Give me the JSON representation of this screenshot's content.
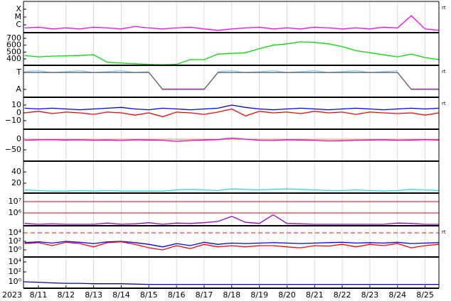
{
  "chart_data": [
    {
      "type": "line",
      "yscale": "log",
      "flag": "rt",
      "xlim": [
        10.46,
        25.5
      ],
      "ylim": [
        1e-07,
        0.001
      ],
      "yticks": [
        {
          "value": 0.0001,
          "label": "X"
        },
        {
          "value": 1e-05,
          "label": "M"
        },
        {
          "value": 1e-06,
          "label": "C"
        }
      ],
      "x": [
        10.5,
        11,
        11.5,
        12,
        12.5,
        13,
        13.5,
        14,
        14.5,
        15,
        15.5,
        16,
        16.5,
        17,
        17.5,
        18,
        18.5,
        19,
        19.5,
        20,
        20.5,
        21,
        21.5,
        22,
        22.5,
        23,
        23.5,
        24,
        24.5,
        25,
        25.5
      ],
      "series": [
        {
          "color": "#ff00ff",
          "values": [
            4e-07,
            5e-07,
            3e-07,
            4e-07,
            3e-07,
            5e-07,
            4e-07,
            3e-07,
            6e-07,
            4e-07,
            3e-07,
            4e-07,
            5e-07,
            3e-07,
            2e-07,
            3e-07,
            4e-07,
            5e-07,
            3e-07,
            4e-07,
            3e-07,
            5e-07,
            4e-07,
            3e-07,
            4e-07,
            3e-07,
            5e-07,
            4e-07,
            1.5e-05,
            3e-07,
            2e-07
          ]
        }
      ]
    },
    {
      "type": "line",
      "xlim": [
        10.46,
        25.5
      ],
      "ylim": [
        307,
        783
      ],
      "yticks": [
        400,
        500,
        600,
        700
      ],
      "x": [
        10.5,
        11,
        11.5,
        12,
        12.5,
        13,
        13.5,
        14,
        14.5,
        15,
        15.5,
        16,
        16.5,
        17,
        17.5,
        18,
        18.5,
        19,
        19.5,
        20,
        20.5,
        21,
        21.5,
        22,
        22.5,
        23,
        23.5,
        24,
        24.5,
        25,
        25.5
      ],
      "series": [
        {
          "color": "#00e000",
          "values": [
            450,
            430,
            440,
            445,
            450,
            460,
            350,
            340,
            330,
            320,
            315,
            320,
            390,
            390,
            470,
            480,
            490,
            550,
            600,
            620,
            650,
            640,
            620,
            580,
            520,
            490,
            460,
            430,
            470,
            420,
            390
          ]
        }
      ]
    },
    {
      "type": "line",
      "flag": "rt",
      "xlim": [
        10.46,
        25.5
      ],
      "ylim": [
        -0.46,
        1.42
      ],
      "yticks": [
        {
          "value": 1,
          "label": "T"
        },
        {
          "value": 0,
          "label": "A"
        }
      ],
      "x": [
        10.5,
        11,
        11.5,
        12,
        12.5,
        13,
        13.5,
        14,
        14.5,
        15,
        15.5,
        16,
        16.5,
        17,
        17.5,
        18,
        18.5,
        19,
        19.5,
        20,
        20.5,
        21,
        21.5,
        22,
        22.5,
        23,
        23.5,
        24,
        24.5,
        25,
        25.5
      ],
      "series": [
        {
          "color": "#88ccff",
          "values": [
            1.05,
            1.1,
            1,
            1.05,
            1.1,
            1,
            1.05,
            1.1,
            1,
            1.05,
            null,
            null,
            null,
            null,
            1.05,
            1.1,
            1,
            1.05,
            1.1,
            1,
            1.05,
            1.1,
            1,
            1.05,
            1.1,
            1,
            1.05,
            1.1,
            null,
            null,
            null
          ]
        },
        {
          "color": "#ff99ff",
          "values": [
            null,
            null,
            null,
            null,
            null,
            null,
            null,
            null,
            null,
            null,
            0.05,
            0.05,
            0.05,
            0.05,
            null,
            null,
            null,
            null,
            null,
            null,
            null,
            null,
            null,
            null,
            null,
            null,
            null,
            null,
            0.05,
            0.05,
            0.05
          ]
        },
        {
          "color": "#555555",
          "values": [
            1,
            1,
            1,
            1,
            1,
            1,
            1,
            1,
            1,
            1,
            0,
            0,
            0,
            0,
            1,
            1,
            1,
            1,
            1,
            1,
            1,
            1,
            1,
            1,
            1,
            1,
            1,
            1,
            0,
            0,
            0
          ]
        }
      ]
    },
    {
      "type": "line",
      "flag": "rt",
      "xlim": [
        10.46,
        25.5
      ],
      "ylim": [
        -21,
        20
      ],
      "yticks": [
        10,
        0,
        {
          "value": -10,
          "label": "−10"
        }
      ],
      "x": [
        10.5,
        11,
        11.5,
        12,
        12.5,
        13,
        13.5,
        14,
        14.5,
        15,
        15.5,
        16,
        16.5,
        17,
        17.5,
        18,
        18.5,
        19,
        19.5,
        20,
        20.5,
        21,
        21.5,
        22,
        22.5,
        23,
        23.5,
        24,
        24.5,
        25,
        25.5
      ],
      "series": [
        {
          "color": "#0000ff",
          "values": [
            6,
            5,
            6,
            5,
            4,
            5,
            6,
            7,
            5,
            4,
            6,
            5,
            4,
            5,
            6,
            10,
            7,
            5,
            4,
            5,
            6,
            5,
            4,
            5,
            6,
            5,
            4,
            5,
            6,
            5,
            6
          ]
        },
        {
          "color": "#ff0000",
          "values": [
            0,
            2,
            -1,
            1,
            0,
            -2,
            1,
            0,
            -3,
            0,
            -5,
            1,
            0,
            -2,
            1,
            5,
            -4,
            2,
            0,
            1,
            -1,
            2,
            0,
            1,
            -2,
            1,
            0,
            -1,
            0,
            -3,
            0
          ]
        }
      ]
    },
    {
      "type": "line",
      "xlim": [
        10.46,
        25.5
      ],
      "ylim": [
        -103,
        47
      ],
      "reference_lines": [
        0
      ],
      "reference_color": "#ff8040",
      "yticks": [
        0,
        {
          "value": -50,
          "label": "−50"
        }
      ],
      "x": [
        10.5,
        11,
        11.5,
        12,
        12.5,
        13,
        13.5,
        14,
        14.5,
        15,
        15.5,
        16,
        16.5,
        17,
        17.5,
        18,
        18.5,
        19,
        19.5,
        20,
        20.5,
        21,
        21.5,
        22,
        22.5,
        23,
        23.5,
        24,
        24.5,
        25,
        25.5
      ],
      "series": [
        {
          "color": "#dd00dd",
          "values": [
            -5,
            -3,
            -2,
            -4,
            -3,
            -5,
            -4,
            -6,
            -3,
            -4,
            -5,
            -10,
            -6,
            -4,
            -2,
            5,
            0,
            -5,
            -6,
            -3,
            -4,
            -5,
            -8,
            -7,
            -5,
            -4,
            -3,
            -5,
            -4,
            -2,
            -4
          ]
        }
      ]
    },
    {
      "type": "line",
      "xlim": [
        10.46,
        25.5
      ],
      "ylim": [
        2.5,
        59
      ],
      "yticks": [
        40,
        20
      ],
      "x": [
        10.5,
        11,
        11.5,
        12,
        12.5,
        13,
        13.5,
        14,
        14.5,
        15,
        15.5,
        16,
        16.5,
        17,
        17.5,
        18,
        18.5,
        19,
        19.5,
        20,
        20.5,
        21,
        21.5,
        22,
        22.5,
        23,
        23.5,
        24,
        24.5,
        25,
        25.5
      ],
      "series": [
        {
          "color": "#22dddd",
          "values": [
            8,
            7,
            6,
            6,
            7,
            6,
            7,
            6,
            6,
            6,
            6,
            8,
            9,
            8,
            7,
            10,
            9,
            8,
            9,
            10,
            9,
            8,
            7,
            7,
            8,
            7,
            6,
            7,
            9,
            8,
            7
          ]
        }
      ]
    },
    {
      "type": "line",
      "yscale": "log",
      "xlim": [
        10.46,
        25.5
      ],
      "ylim": [
        75000,
        56000000
      ],
      "reference_lines": [
        10000000,
        1000000
      ],
      "reference_color": "#dd0000",
      "yticks": [
        {
          "value": 10000000,
          "label": "10⁷"
        },
        {
          "value": 1000000,
          "label": "10⁶"
        }
      ],
      "x": [
        10.5,
        11,
        11.5,
        12,
        12.5,
        13,
        13.5,
        14,
        14.5,
        15,
        15.5,
        16,
        16.5,
        17,
        17.5,
        18,
        18.5,
        19,
        19.5,
        20,
        20.5,
        21,
        21.5,
        22,
        22.5,
        23,
        23.5,
        24,
        24.5,
        25,
        25.5
      ],
      "series": [
        {
          "color": "#9900cc",
          "values": [
            120000,
            100000,
            110000,
            100000,
            100000,
            100000,
            130000,
            100000,
            110000,
            140000,
            100000,
            130000,
            120000,
            140000,
            180000,
            500000,
            150000,
            120000,
            700000,
            120000,
            110000,
            100000,
            100000,
            100000,
            100000,
            100000,
            100000,
            130000,
            120000,
            100000,
            100000
          ]
        }
      ]
    },
    {
      "type": "line",
      "yscale": "log",
      "flag": "rt",
      "xlim": [
        10.46,
        25.5
      ],
      "ylim": [
        0.0214,
        468000
      ],
      "reference_lines": [
        10000
      ],
      "reference_color": "#ff0000",
      "yticks": [
        {
          "value": 10000,
          "label": "10⁴"
        },
        {
          "value": 100,
          "label": "10²"
        },
        {
          "value": 1,
          "label": "10⁰"
        }
      ],
      "x": [
        10.5,
        11,
        11.5,
        12,
        12.5,
        13,
        13.5,
        14,
        14.5,
        15,
        15.5,
        16,
        16.5,
        17,
        17.5,
        18,
        18.5,
        19,
        19.5,
        20,
        20.5,
        21,
        21.5,
        22,
        22.5,
        23,
        23.5,
        24,
        24.5,
        25,
        25.5
      ],
      "series": [
        {
          "color": "#0000ff",
          "values": [
            50,
            80,
            40,
            100,
            60,
            30,
            80,
            100,
            50,
            20,
            5,
            30,
            10,
            60,
            20,
            40,
            30,
            40,
            50,
            40,
            30,
            40,
            50,
            60,
            40,
            50,
            40,
            60,
            30,
            40,
            50
          ]
        },
        {
          "color": "#ff0000",
          "values": [
            30,
            50,
            10,
            60,
            30,
            5,
            50,
            80,
            20,
            3,
            1,
            10,
            2,
            20,
            5,
            10,
            5,
            10,
            10,
            5,
            3,
            10,
            8,
            20,
            5,
            20,
            10,
            30,
            3,
            10,
            20
          ]
        }
      ]
    },
    {
      "type": "line",
      "yscale": "log",
      "xlim": [
        10.46,
        25.5
      ],
      "ylim": [
        0.051,
        100000
      ],
      "yticks": [
        {
          "value": 10000,
          "label": "10⁴"
        },
        {
          "value": 100,
          "label": "10²"
        },
        {
          "value": 1,
          "label": "10⁰"
        }
      ],
      "year": "2023",
      "xticks": [
        {
          "value": 11,
          "label": "8/11"
        },
        {
          "value": 12,
          "label": "8/12"
        },
        {
          "value": 13,
          "label": "8/13"
        },
        {
          "value": 14,
          "label": "8/14"
        },
        {
          "value": 15,
          "label": "8/15"
        },
        {
          "value": 16,
          "label": "8/16"
        },
        {
          "value": 17,
          "label": "8/17"
        },
        {
          "value": 18,
          "label": "8/18"
        },
        {
          "value": 19,
          "label": "8/19"
        },
        {
          "value": 20,
          "label": "8/20"
        },
        {
          "value": 21,
          "label": "8/21"
        },
        {
          "value": 22,
          "label": "8/22"
        },
        {
          "value": 23,
          "label": "8/23"
        },
        {
          "value": 24,
          "label": "8/24"
        },
        {
          "value": 25,
          "label": "8/25"
        }
      ],
      "x": [
        10.5,
        11,
        11.5,
        12,
        12.5,
        13,
        13.5,
        14,
        14.5,
        15,
        15.5,
        16,
        16.5,
        17,
        17.5,
        18,
        18.5,
        19,
        19.5,
        20,
        20.5,
        21,
        21.5,
        22,
        22.5,
        23,
        23.5,
        24,
        24.5,
        25,
        25.5
      ],
      "series": [
        {
          "color": "#0000cc",
          "values": [
            1,
            0.8,
            0.6,
            0.5,
            0.5,
            0.4,
            0.4,
            0.4,
            0.35,
            0.3,
            0.3,
            0.3,
            0.3,
            0.3,
            0.3,
            0.3,
            0.3,
            0.3,
            0.3,
            0.3,
            0.3,
            0.3,
            0.3,
            0.3,
            0.3,
            0.3,
            0.3,
            0.3,
            0.3,
            0.3,
            0.3
          ]
        }
      ]
    }
  ]
}
